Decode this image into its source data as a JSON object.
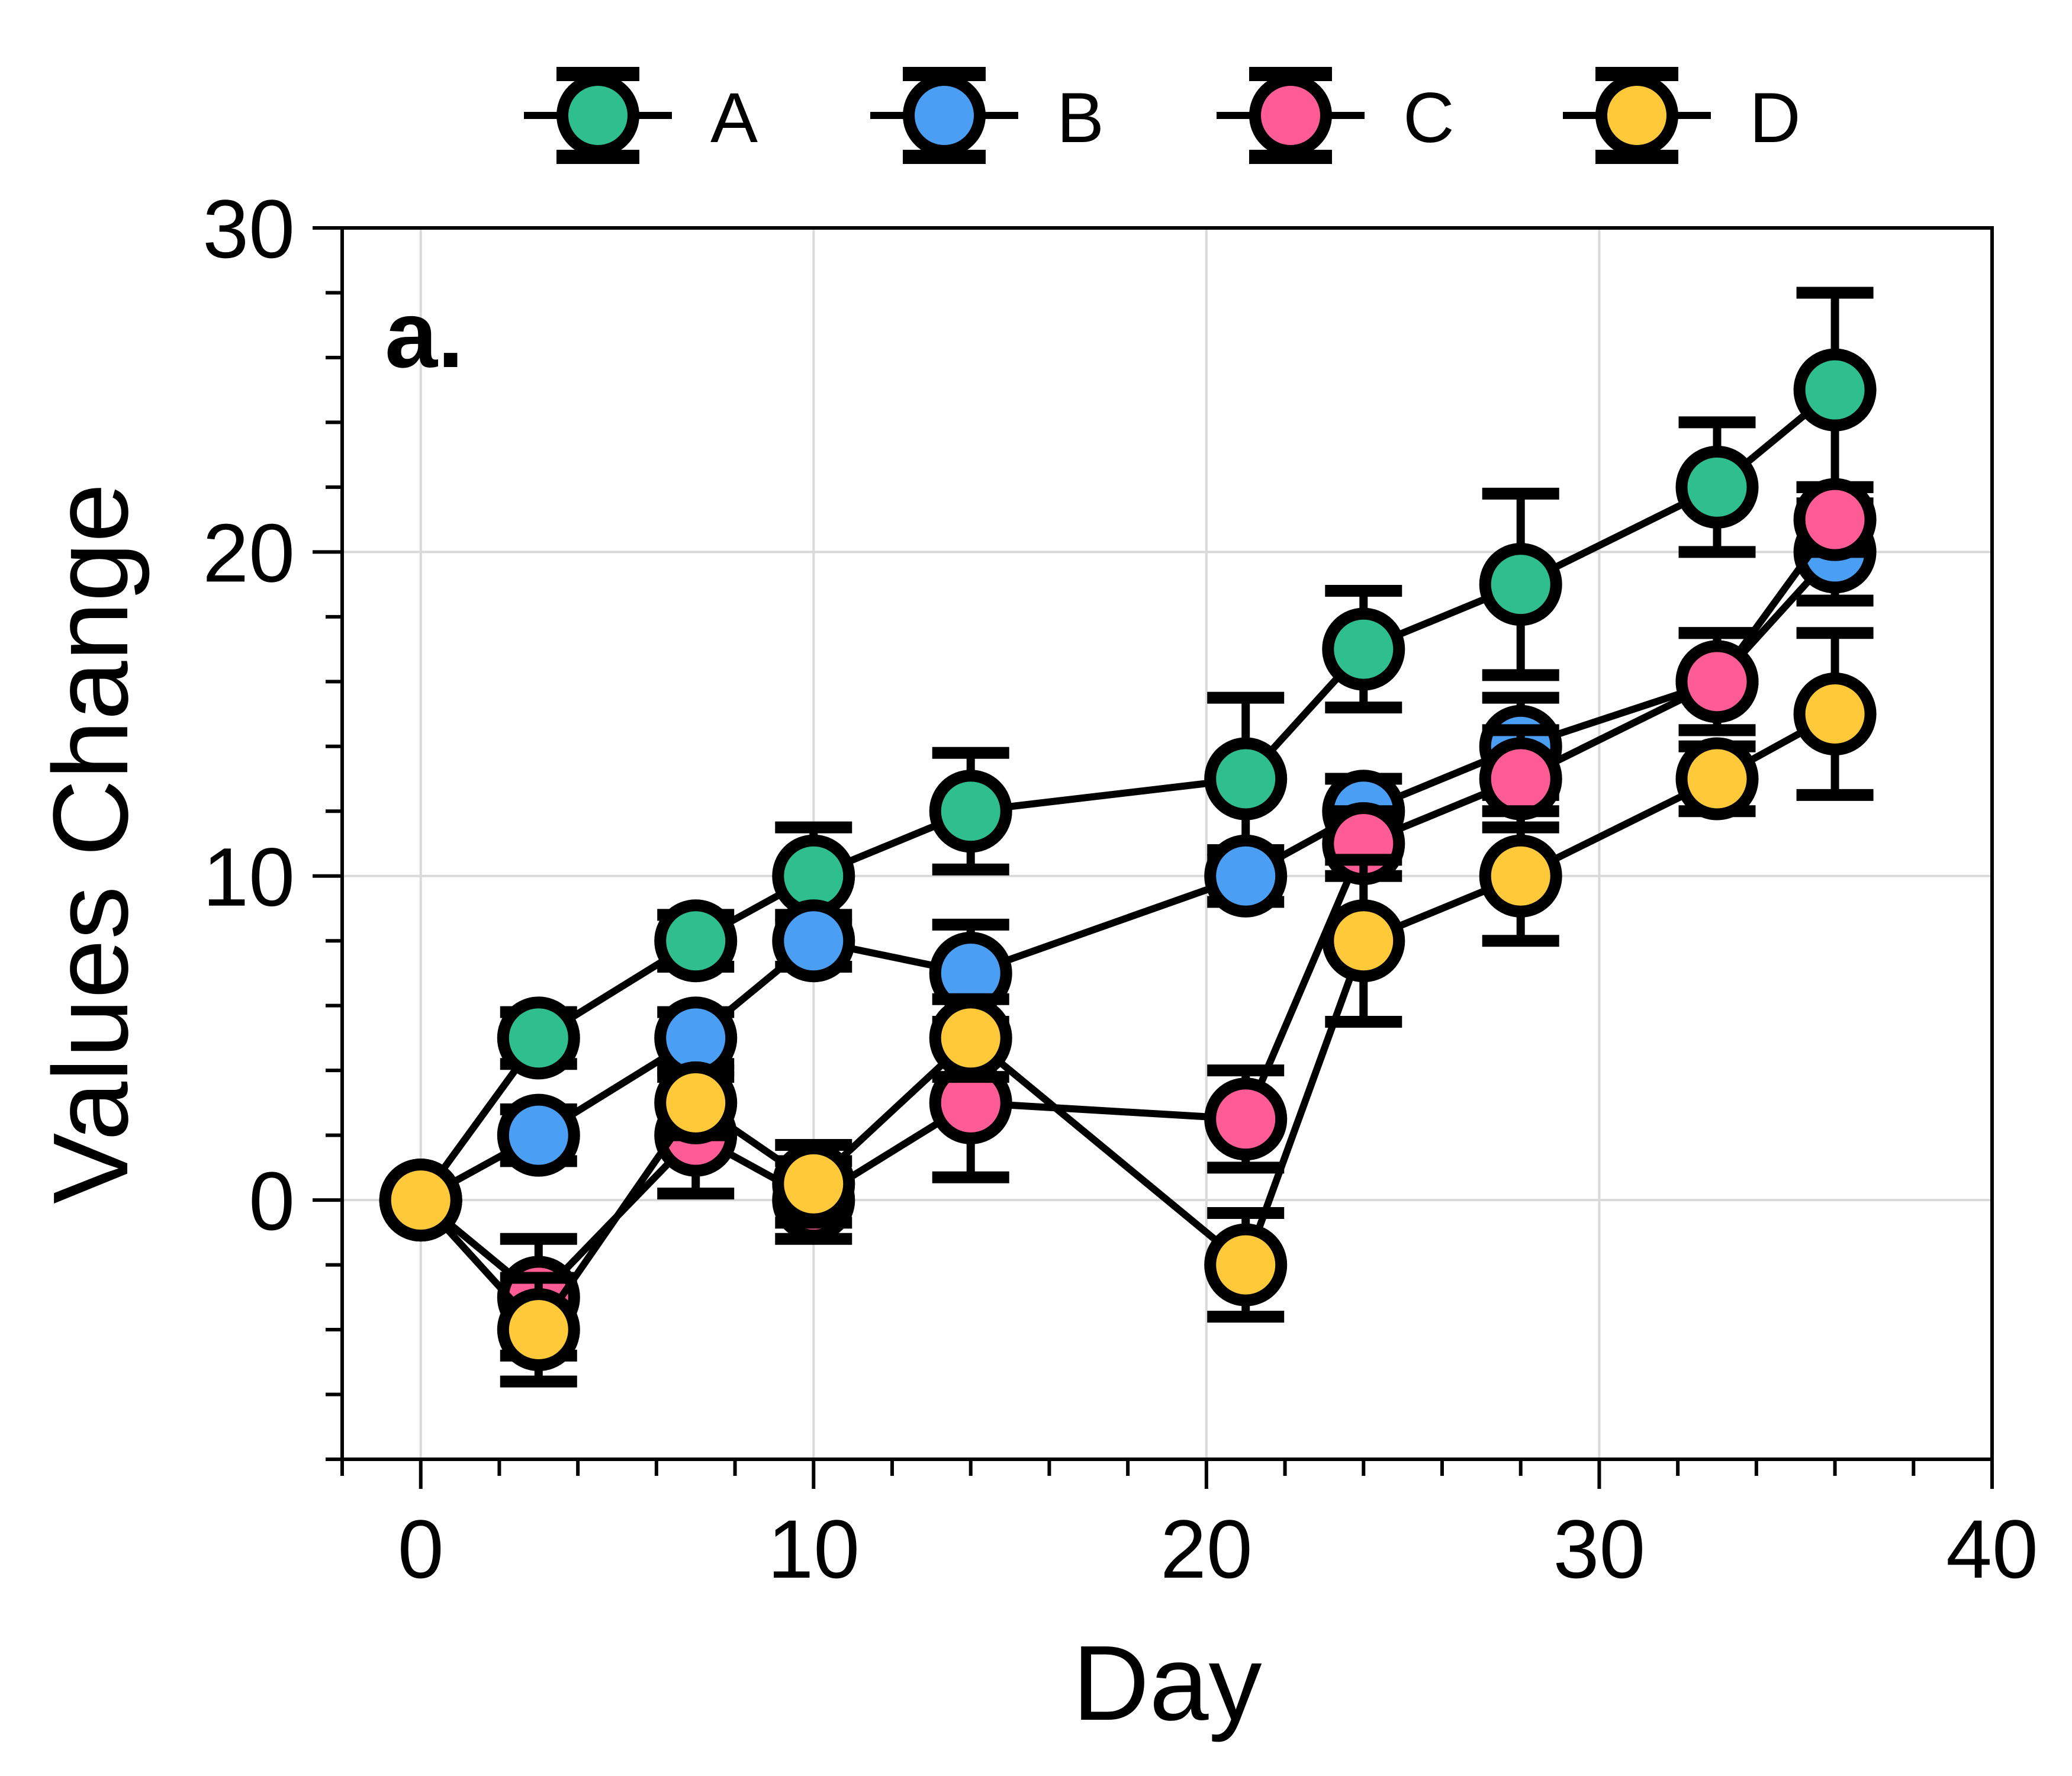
{
  "chart_data": {
    "type": "line",
    "panel_label": "a.",
    "xlabel": "Day",
    "ylabel": "Values Change",
    "xlim": [
      -2,
      40
    ],
    "ylim": [
      -8,
      30
    ],
    "xticks": [
      0,
      10,
      20,
      30,
      40
    ],
    "yticks": [
      0,
      10,
      20,
      30
    ],
    "grid": true,
    "legend_position": "top",
    "x": [
      0,
      3,
      7,
      10,
      14,
      21,
      24,
      28,
      33,
      36
    ],
    "series": [
      {
        "name": "A",
        "color": "#2fbf8e",
        "values": [
          0,
          5,
          8,
          10,
          12,
          13,
          17,
          19,
          22,
          25
        ],
        "errors": [
          0,
          0.8,
          0.8,
          1.5,
          1.8,
          2.5,
          1.8,
          2.8,
          2.0,
          3.0
        ]
      },
      {
        "name": "B",
        "color": "#4a9ff5",
        "values": [
          0,
          2,
          5,
          8,
          7,
          10,
          12,
          14,
          16,
          20
        ],
        "errors": [
          0,
          0.8,
          0.8,
          0.8,
          1.5,
          0.8,
          1.0,
          1.5,
          1.5,
          1.5
        ]
      },
      {
        "name": "C",
        "color": "#ff5c96",
        "values": [
          0,
          -3,
          2,
          0,
          3,
          2.5,
          11,
          13,
          16,
          21
        ],
        "errors": [
          0,
          1.8,
          1.8,
          1.2,
          2.3,
          1.5,
          1.0,
          1.5,
          1.5,
          1.0
        ]
      },
      {
        "name": "D",
        "color": "#ffc93a",
        "values": [
          0,
          -4,
          3,
          0.5,
          5,
          -2,
          8,
          10,
          13,
          15
        ],
        "errors": [
          0,
          1.6,
          1.0,
          1.2,
          1.2,
          1.6,
          2.5,
          2.0,
          1.0,
          2.5
        ]
      }
    ]
  }
}
